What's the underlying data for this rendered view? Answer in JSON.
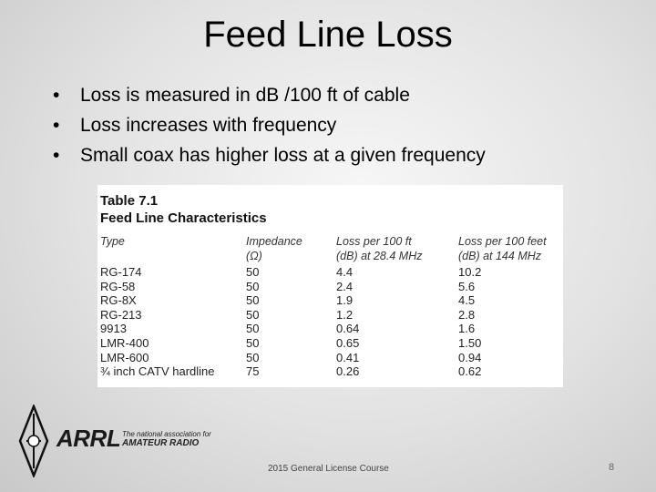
{
  "slide": {
    "title": "Feed Line Loss",
    "bullets": [
      "Loss is measured in dB /100 ft of cable",
      "Loss increases with frequency",
      "Small coax has higher loss at a given frequency"
    ],
    "footer": "2015 General License Course",
    "page_number": "8"
  },
  "table": {
    "caption": "Table 7.1",
    "subtitle": "Feed Line Characteristics",
    "headers": [
      [
        "Type",
        ""
      ],
      [
        "Impedance",
        "(Ω)"
      ],
      [
        "Loss per 100 ft",
        "(dB) at 28.4 MHz"
      ],
      [
        "Loss per 100 feet",
        "(dB) at 144 MHz"
      ]
    ],
    "rows": [
      [
        "RG-174",
        "50",
        "4.4",
        "10.2"
      ],
      [
        "RG-58",
        "50",
        "2.4",
        "5.6"
      ],
      [
        "RG-8X",
        "50",
        "1.9",
        "4.5"
      ],
      [
        "RG-213",
        "50",
        "1.2",
        "2.8"
      ],
      [
        "9913",
        "50",
        "0.64",
        "1.6"
      ],
      [
        "LMR-400",
        "50",
        "0.65",
        "1.50"
      ],
      [
        "LMR-600",
        "50",
        "0.41",
        "0.94"
      ],
      [
        "¾ inch CATV hardline",
        "75",
        "0.26",
        "0.62"
      ]
    ]
  },
  "logo": {
    "name": "ARRL",
    "tagline_1": "The national association for",
    "tagline_2": "AMATEUR RADIO",
    "icon": "arrl-diamond-logo-icon"
  }
}
